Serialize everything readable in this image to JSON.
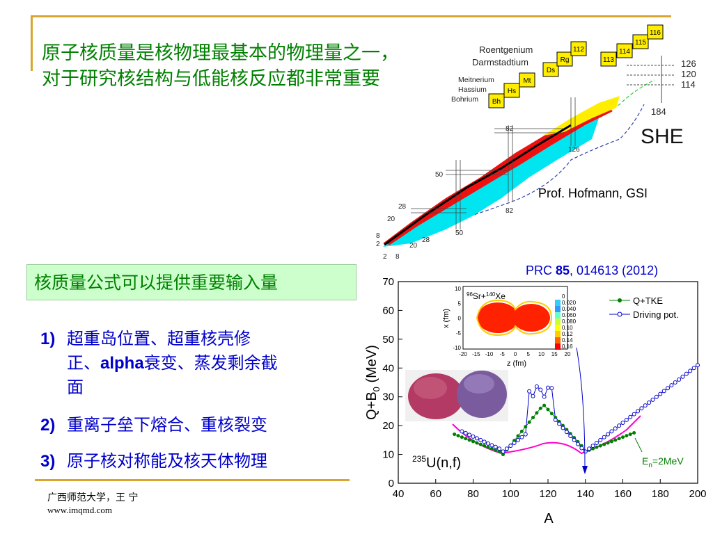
{
  "title": "原子核质量是核物理最基本的物理量之一，对于研究核结构与低能核反应都非常重要",
  "formula_box": "核质量公式可以提供重要输入量",
  "items": [
    {
      "num": "1)",
      "text_a": "超重岛位置、超重核壳修",
      "text_b": "正、",
      "text_en": "alpha",
      "text_c": "衰变、蒸发剩余截",
      "text_d": "面"
    },
    {
      "num": "2)",
      "text": "重离子垒下熔合、重核裂变"
    },
    {
      "num": "3)",
      "text": "原子核对称能及核天体物理"
    }
  ],
  "footer": {
    "university": "广西师范大学，王 宁",
    "url": "www.imqmd.com"
  },
  "nuclide_chart": {
    "element_names": [
      "Roentgenium",
      "Darmstadtium",
      "Meitnerium",
      "Hassium",
      "Bohrium"
    ],
    "element_boxes": [
      "Bh",
      "Hs",
      "Mt",
      "Ds",
      "Rg",
      "112",
      "113",
      "114",
      "115",
      "116"
    ],
    "proton_magic": [
      "126",
      "120",
      "114"
    ],
    "neutron_label": "184",
    "she_label": "SHE",
    "magic_numbers_left": [
      "82",
      "50",
      "28",
      "20",
      "8",
      "2"
    ],
    "magic_numbers_bottom": [
      "2",
      "8",
      "20",
      "28",
      "50",
      "82",
      "126"
    ],
    "credit": "Prof. Hofmann, GSI"
  },
  "plot": {
    "reference_pre": "PRC ",
    "reference_bold": "85",
    "reference_post": ", 014613 (2012)",
    "xlabel": "A",
    "ylabel": "Q+B",
    "ylabel_sub": "0",
    "ylabel_unit": " (MeV)",
    "xticks": [
      "40",
      "60",
      "80",
      "100",
      "120",
      "140",
      "160",
      "180",
      "200"
    ],
    "yticks": [
      "0",
      "10",
      "20",
      "30",
      "40",
      "50",
      "60",
      "70"
    ],
    "legend": [
      "Q+TKE",
      "Driving pot."
    ],
    "reaction_sup": "235",
    "reaction": "U(n,f)",
    "energy_label": "E",
    "energy_sub": "n",
    "energy_post": "=2MeV",
    "inset": {
      "title_sup1": "96",
      "title_a": "Sr+",
      "title_sup2": "140",
      "title_b": "Xe",
      "xlabel": "z (fm)",
      "ylabel": "x (fm)",
      "xticks": [
        "-20",
        "-15",
        "-10",
        "-5",
        "0",
        "5",
        "10",
        "15",
        "20"
      ],
      "yticks": [
        "10",
        "5",
        "0",
        "-5",
        "-10"
      ],
      "colorbar": [
        "0",
        "0.020",
        "0.040",
        "0.060",
        "0.080",
        "0.10",
        "0.12",
        "0.14",
        "0.16"
      ]
    },
    "colors": {
      "tke": "#008000",
      "driving": "#0000cc",
      "magenta": "#ff00cc"
    }
  }
}
